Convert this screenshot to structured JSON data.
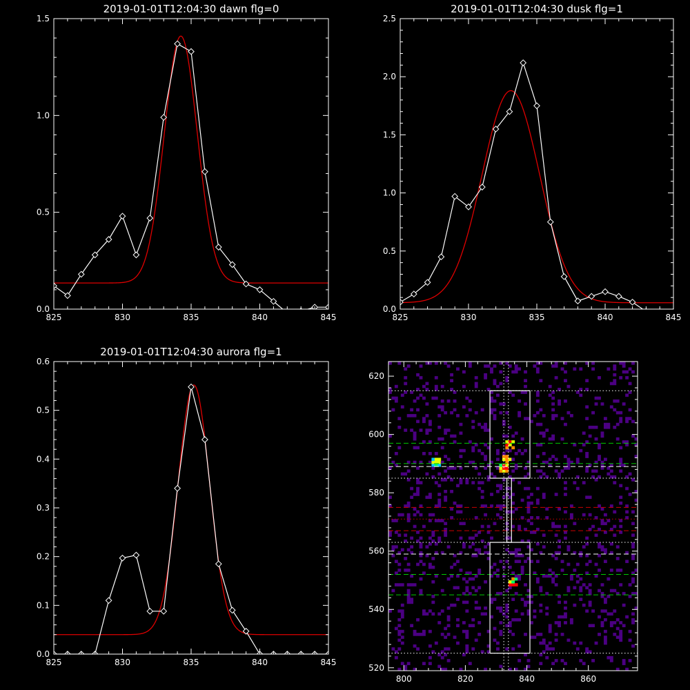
{
  "colors": {
    "background": "#000000",
    "axis": "#ffffff",
    "data": "#ffffff",
    "fit": "#e00000"
  },
  "chart_data": [
    {
      "type": "line",
      "title": "2019-01-01T12:04:30 dawn flg=0",
      "xlabel": "",
      "ylabel": "",
      "xlim": [
        825,
        845
      ],
      "ylim": [
        0,
        1.5
      ],
      "xticks": [
        "825",
        "830",
        "835",
        "840",
        "845"
      ],
      "yticks": [
        "0.0",
        "0.5",
        "1.0",
        "1.5"
      ],
      "series": [
        {
          "role": "data",
          "markers": "diamond",
          "x": [
            825,
            826,
            827,
            828,
            829,
            830,
            831,
            832,
            833,
            834,
            835,
            836,
            837,
            838,
            839,
            840,
            841,
            842,
            843,
            844,
            845
          ],
          "y": [
            0.12,
            0.07,
            0.18,
            0.28,
            0.36,
            0.48,
            0.28,
            0.47,
            0.99,
            1.37,
            1.33,
            0.71,
            0.32,
            0.23,
            0.13,
            0.1,
            0.04,
            -0.02,
            -0.01,
            0.01,
            0.01
          ]
        },
        {
          "role": "fit",
          "shape": "gaussian",
          "baseline": 0.135,
          "amplitude": 1.275,
          "center": 834.25,
          "sigma": 1.2
        }
      ]
    },
    {
      "type": "line",
      "title": "2019-01-01T12:04:30 dusk flg=1",
      "xlabel": "",
      "ylabel": "",
      "xlim": [
        825,
        845
      ],
      "ylim": [
        0,
        2.5
      ],
      "xticks": [
        "825",
        "830",
        "835",
        "840",
        "845"
      ],
      "yticks": [
        "0.0",
        "0.5",
        "1.0",
        "1.5",
        "2.0",
        "2.5"
      ],
      "series": [
        {
          "role": "data",
          "markers": "diamond",
          "x": [
            825,
            826,
            827,
            828,
            829,
            830,
            831,
            832,
            833,
            834,
            835,
            836,
            837,
            838,
            839,
            840,
            841,
            842,
            843,
            844,
            845
          ],
          "y": [
            0.06,
            0.13,
            0.23,
            0.45,
            0.97,
            0.88,
            1.05,
            1.55,
            1.7,
            2.12,
            1.75,
            0.75,
            0.28,
            0.07,
            0.11,
            0.15,
            0.11,
            0.06,
            -0.02,
            -0.03,
            -0.02
          ]
        },
        {
          "role": "fit",
          "shape": "gaussian",
          "baseline": 0.055,
          "amplitude": 1.825,
          "center": 833.1,
          "sigma": 2.1
        }
      ]
    },
    {
      "type": "line",
      "title": "2019-01-01T12:04:30 aurora flg=1",
      "xlabel": "",
      "ylabel": "",
      "xlim": [
        825,
        845
      ],
      "ylim": [
        0,
        0.6
      ],
      "xticks": [
        "825",
        "830",
        "835",
        "840",
        "845"
      ],
      "yticks": [
        "0.0",
        "0.1",
        "0.2",
        "0.3",
        "0.4",
        "0.5",
        "0.6"
      ],
      "series": [
        {
          "role": "data",
          "markers": "diamond",
          "x": [
            825,
            826,
            827,
            828,
            829,
            830,
            831,
            832,
            833,
            834,
            835,
            836,
            837,
            838,
            839,
            840,
            841,
            842,
            843,
            844,
            845
          ],
          "y": [
            0,
            0,
            0,
            0,
            0.11,
            0.197,
            0.203,
            0.088,
            0.088,
            0.34,
            0.548,
            0.44,
            0.185,
            0.09,
            0.047,
            0,
            0,
            0,
            0,
            0,
            0
          ]
        },
        {
          "role": "fit",
          "shape": "gaussian",
          "baseline": 0.04,
          "amplitude": 0.512,
          "center": 835.2,
          "sigma": 1.15
        }
      ]
    },
    {
      "type": "heatmap",
      "title": "",
      "xlabel": "",
      "ylabel": "",
      "xlim": [
        795,
        876
      ],
      "ylim": [
        519,
        625
      ],
      "xticks": [
        "800",
        "820",
        "840",
        "860"
      ],
      "yticks": [
        "520",
        "540",
        "560",
        "580",
        "600",
        "620"
      ],
      "colormap": [
        "#4b0082",
        "#1f3cff",
        "#00c8ff",
        "#00ff66",
        "#e0ff00",
        "#ff8800",
        "#ff0000"
      ],
      "columns": [
        {
          "x": 810,
          "ranges": [
            [
              585,
              598,
              0.45
            ],
            [
              540,
              566,
              0.3
            ]
          ]
        },
        {
          "x": 833,
          "ranges": [
            [
              584,
              600,
              0.75
            ],
            [
              541,
              563,
              0.65
            ]
          ]
        },
        {
          "x": 834,
          "ranges": [
            [
              563,
              584,
              0.35
            ]
          ]
        },
        {
          "x": 853,
          "ranges": [
            [
              586,
              593,
              0.25
            ],
            [
              540,
              561,
              0.2
            ]
          ]
        }
      ],
      "peaks": [
        [
          832,
          588,
          0.95
        ],
        [
          834,
          596,
          0.95
        ],
        [
          835,
          549,
          0.9
        ],
        [
          833,
          591,
          0.8
        ],
        [
          810,
          590,
          0.7
        ]
      ],
      "vertical_lines": [
        {
          "x": 832.5,
          "style": "dotted",
          "color": "#ffffff"
        },
        {
          "x": 834,
          "style": "dotted",
          "color": "#ffffff"
        }
      ],
      "horizontal_lines": [
        {
          "y": 615,
          "style": "dotted",
          "color": "#ffffff"
        },
        {
          "y": 597,
          "style": "dashed",
          "color": "#00cc00"
        },
        {
          "y": 590,
          "style": "dashed",
          "color": "#00cc00"
        },
        {
          "y": 589,
          "style": "dashed",
          "color": "#ffffff"
        },
        {
          "y": 585,
          "style": "dotted",
          "color": "#ffffff"
        },
        {
          "y": 575,
          "style": "dashed",
          "color": "#cc0000"
        },
        {
          "y": 571,
          "style": "dotted",
          "color": "#cc0000"
        },
        {
          "y": 567,
          "style": "dashed",
          "color": "#cc0000"
        },
        {
          "y": 563,
          "style": "dotted",
          "color": "#ffffff"
        },
        {
          "y": 559,
          "style": "dashed",
          "color": "#ffffff"
        },
        {
          "y": 552,
          "style": "dashed",
          "color": "#00cc00"
        },
        {
          "y": 545,
          "style": "dashed",
          "color": "#00cc00"
        },
        {
          "y": 525,
          "style": "dotted",
          "color": "#ffffff"
        }
      ],
      "boxes": [
        {
          "x": [
            828,
            841
          ],
          "y": [
            585,
            615
          ]
        },
        {
          "x": [
            833.5,
            835
          ],
          "y": [
            563,
            585
          ]
        },
        {
          "x": [
            828,
            841
          ],
          "y": [
            525,
            563
          ]
        }
      ]
    }
  ]
}
